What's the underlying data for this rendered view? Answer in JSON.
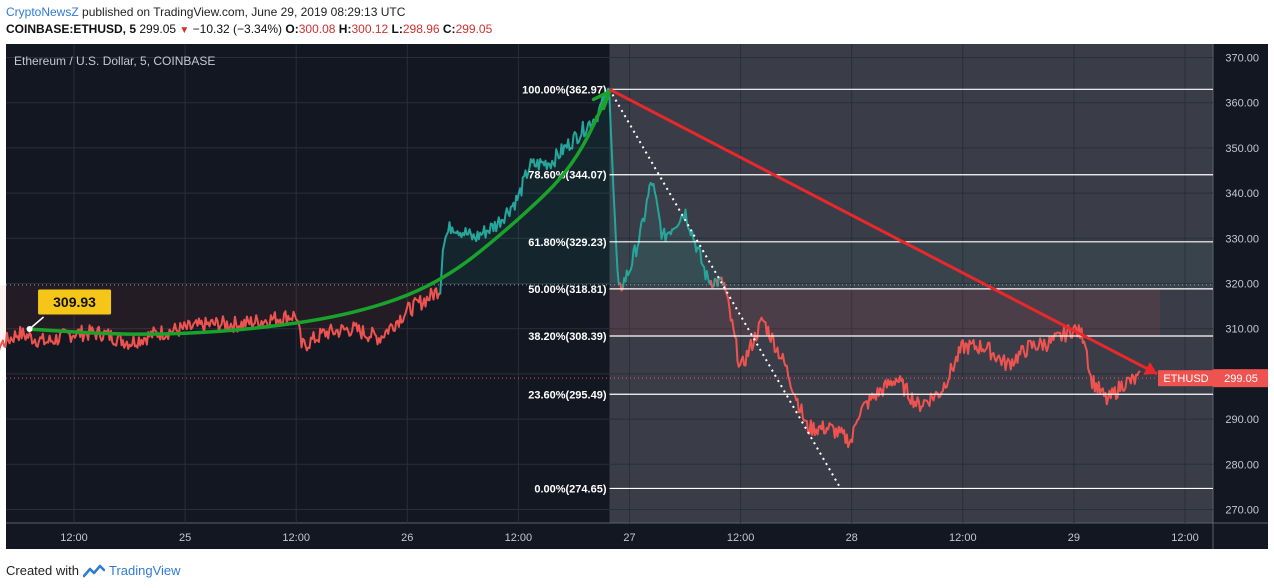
{
  "header": {
    "author": "CryptoNewsZ",
    "published": "published on TradingView.com, June 29, 2019 08:29:13 UTC",
    "symbol": "COINBASE:ETHUSD, 5",
    "last": "299.05",
    "change": "−10.32 (−3.34%)",
    "o_label": "O:",
    "o_val": "300.08",
    "h_label": "H:",
    "h_val": "300.12",
    "l_label": "L:",
    "l_val": "298.96",
    "c_label": "C:",
    "c_val": "299.05"
  },
  "footer": {
    "created_with": "Created with",
    "brand": "TradingView"
  },
  "icons": {
    "down": "down-triangle-icon",
    "brand": "tradingview-logo-icon"
  },
  "colors": {
    "bg": "#131722",
    "up": "#26a69a",
    "down": "#ef5350",
    "arrow": "#e8282b",
    "curve": "#1aa32a",
    "fib": "#ffffff"
  },
  "chart_data": {
    "type": "line",
    "title": "Ethereum / U.S. Dollar, 5, COINBASE",
    "ylim": [
      267,
      373
    ],
    "yticks": [
      "370.00",
      "360.00",
      "350.00",
      "340.00",
      "330.00",
      "320.00",
      "310.00",
      "300.00",
      "290.00",
      "280.00",
      "270.00"
    ],
    "xticks": [
      {
        "label": "12:00",
        "t": 1.0
      },
      {
        "label": "25",
        "t": 2.0
      },
      {
        "label": "12:00",
        "t": 3.0
      },
      {
        "label": "26",
        "t": 4.0
      },
      {
        "label": "12:00",
        "t": 5.0
      },
      {
        "label": "27",
        "t": 6.0
      },
      {
        "label": "12:00",
        "t": 7.0
      },
      {
        "label": "28",
        "t": 8.0
      },
      {
        "label": "12:00",
        "t": 9.0
      },
      {
        "label": "29",
        "t": 10.0
      },
      {
        "label": "12:00",
        "t": 11.0
      }
    ],
    "price_anchors": [
      [
        0.0,
        306
      ],
      [
        0.25,
        305
      ],
      [
        0.5,
        309
      ],
      [
        0.75,
        307
      ],
      [
        1.0,
        309
      ],
      [
        1.25,
        309
      ],
      [
        1.5,
        307
      ],
      [
        1.75,
        309
      ],
      [
        2.0,
        310
      ],
      [
        2.25,
        311
      ],
      [
        2.5,
        311
      ],
      [
        2.75,
        312
      ],
      [
        3.0,
        313
      ],
      [
        3.05,
        306
      ],
      [
        3.25,
        309
      ],
      [
        3.5,
        310
      ],
      [
        3.75,
        308
      ],
      [
        4.0,
        314
      ],
      [
        4.2,
        317
      ],
      [
        4.3,
        319
      ],
      [
        4.32,
        329
      ],
      [
        4.4,
        333
      ],
      [
        4.6,
        330
      ],
      [
        4.8,
        333
      ],
      [
        5.0,
        339
      ],
      [
        5.1,
        346
      ],
      [
        5.3,
        347
      ],
      [
        5.5,
        352
      ],
      [
        5.7,
        357
      ],
      [
        5.82,
        363
      ],
      [
        5.86,
        338
      ],
      [
        5.9,
        318
      ],
      [
        6.0,
        323
      ],
      [
        6.1,
        331
      ],
      [
        6.2,
        343
      ],
      [
        6.3,
        330
      ],
      [
        6.5,
        336
      ],
      [
        6.7,
        321
      ],
      [
        6.85,
        320
      ],
      [
        7.0,
        301
      ],
      [
        7.2,
        312
      ],
      [
        7.4,
        302
      ],
      [
        7.6,
        288
      ],
      [
        7.8,
        288
      ],
      [
        8.0,
        285
      ],
      [
        8.05,
        291
      ],
      [
        8.2,
        295
      ],
      [
        8.4,
        299
      ],
      [
        8.6,
        293
      ],
      [
        8.8,
        296
      ],
      [
        9.0,
        306
      ],
      [
        9.2,
        306
      ],
      [
        9.4,
        302
      ],
      [
        9.6,
        306
      ],
      [
        9.8,
        307
      ],
      [
        10.0,
        310
      ],
      [
        10.1,
        308
      ],
      [
        10.15,
        299
      ],
      [
        10.3,
        294
      ],
      [
        10.45,
        298
      ],
      [
        10.6,
        299
      ]
    ],
    "last_price": 299.05,
    "last_label": "ETHUSD",
    "last_value_label": "299.05",
    "marker": {
      "t": 0.6,
      "value": 309.93,
      "label": "309.93"
    },
    "fib_levels": [
      {
        "label": "100.00%(362.97)",
        "value": 362.97
      },
      {
        "label": "78.60%(344.07)",
        "value": 344.07
      },
      {
        "label": "61.80%(329.23)",
        "value": 329.23
      },
      {
        "label": "50.00%(318.81)",
        "value": 318.81
      },
      {
        "label": "38.20%(308.39)",
        "value": 308.39
      },
      {
        "label": "23.60%(295.49)",
        "value": 295.49
      },
      {
        "label": "0.00%(274.65)",
        "value": 274.65
      }
    ],
    "fib_start_t": 5.82,
    "fib_low_t": 7.9,
    "trend_arrow": {
      "from": [
        5.82,
        362.97
      ],
      "to": [
        10.75,
        300
      ]
    },
    "dotted_ref_value": 319.7,
    "green_curve": [
      [
        0.6,
        309.9
      ],
      [
        1.5,
        308.5
      ],
      [
        2.5,
        309.5
      ],
      [
        3.5,
        313
      ],
      [
        4.3,
        320
      ],
      [
        5.0,
        334
      ],
      [
        5.5,
        346
      ],
      [
        5.82,
        362.5
      ]
    ]
  }
}
